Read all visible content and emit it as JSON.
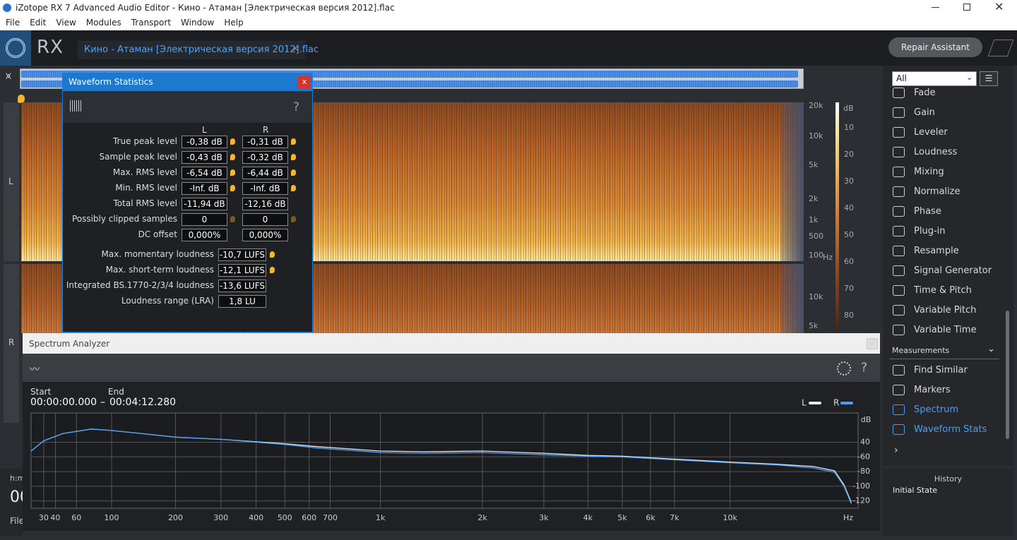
{
  "window": {
    "title": "iZotope RX 7 Advanced Audio Editor - Кино - Атаман [Электрическая версия 2012].flac"
  },
  "menu": [
    "File",
    "Edit",
    "View",
    "Modules",
    "Transport",
    "Window",
    "Help"
  ],
  "header": {
    "logo": "RX",
    "tab": "Кино - Атаман [Электрическая версия 2012].flac",
    "repair_button": "Repair Assistant"
  },
  "editor": {
    "channels": [
      "L",
      "R"
    ],
    "freq_labels_top": [
      "20k",
      "10k",
      "5k",
      "2k",
      "1k",
      "500",
      "100"
    ],
    "freq_unit": "Hz",
    "freq_labels_bottom": [
      "10k",
      "5k"
    ],
    "db_unit": "dB",
    "db_labels": [
      "10",
      "20",
      "30",
      "40",
      "50",
      "60",
      "70",
      "80"
    ]
  },
  "waveform_statistics": {
    "title": "Waveform Statistics",
    "close": "x",
    "help": "?",
    "columns": [
      "L",
      "R"
    ],
    "rows": [
      {
        "label": "True peak level",
        "l": "-0,38 dB",
        "r": "-0,31 dB"
      },
      {
        "label": "Sample peak level",
        "l": "-0,43 dB",
        "r": "-0,32 dB"
      },
      {
        "label": "Max. RMS level",
        "l": "-6,54 dB",
        "r": "-6,44 dB"
      },
      {
        "label": "Min. RMS level",
        "l": "-Inf. dB",
        "r": "-Inf. dB"
      },
      {
        "label": "Total RMS level",
        "l": "-11,94 dB",
        "r": "-12,16 dB"
      },
      {
        "label": "Possibly clipped samples",
        "l": "0",
        "r": "0"
      },
      {
        "label": "DC offset",
        "l": "0,000%",
        "r": "0,000%"
      }
    ],
    "loudness": [
      {
        "label": "Max. momentary loudness",
        "value": "-10,7 LUFS"
      },
      {
        "label": "Max. short-term loudness",
        "value": "-12,1 LUFS"
      },
      {
        "label": "Integrated BS.1770-2/3/4 loudness",
        "value": "-13,6 LUFS"
      },
      {
        "label": "Loudness range (LRA)",
        "value": "1,8 LU"
      }
    ]
  },
  "spectrum_analyzer": {
    "title": "Spectrum Analyzer",
    "help": "?",
    "start_label": "Start",
    "end_label": "End",
    "start": "00:00:00.000",
    "separator": "–",
    "end": "00:04:12.280"
  },
  "chart_data": {
    "type": "line",
    "x_label": "Hz",
    "y_label": "dB",
    "x": [
      20,
      30,
      47,
      76,
      100,
      141,
      200,
      300,
      500,
      640,
      1000,
      1350,
      2000,
      3000,
      4000,
      5000,
      7000,
      10000,
      13500,
      17000,
      19500,
      20700,
      21700
    ],
    "series": [
      {
        "name": "L",
        "color": "#e8e8e8",
        "values": [
          -52,
          -38,
          -28,
          -22,
          -24,
          -28,
          -33,
          -36,
          -42,
          -46,
          -52,
          -53,
          -52,
          -55,
          -58,
          -59,
          -63,
          -67,
          -70,
          -73,
          -79,
          -98,
          -122
        ]
      },
      {
        "name": "R",
        "color": "#4a9ff5",
        "values": [
          -52,
          -38,
          -28,
          -22,
          -24,
          -28,
          -33,
          -36,
          -43,
          -48,
          -54,
          -55,
          -54,
          -57,
          -59,
          -60,
          -64,
          -68,
          -71,
          -75,
          -81,
          -100,
          -124
        ]
      }
    ],
    "xlim": [
      20,
      22050
    ],
    "ylim": [
      -130,
      0
    ],
    "xticks": [
      30,
      40,
      60,
      100,
      200,
      300,
      400,
      500,
      600,
      700,
      {
        "value": 1000,
        "label": "1k"
      },
      {
        "value": 2000,
        "label": "2k"
      },
      {
        "value": 3000,
        "label": "3k"
      },
      {
        "value": 4000,
        "label": "4k"
      },
      {
        "value": 5000,
        "label": "5k"
      },
      {
        "value": 6000,
        "label": "6k"
      },
      {
        "value": 7000,
        "label": "7k"
      },
      {
        "value": 10000,
        "label": "10k"
      }
    ],
    "yticks": [
      {
        "value": -40,
        "label": "40"
      },
      -60,
      -80,
      -100,
      -120
    ],
    "grid": true
  },
  "modules": {
    "filter": "All",
    "items": [
      "Fade",
      "Gain",
      "Leveler",
      "Loudness",
      "Mixing",
      "Normalize",
      "Phase",
      "Plug-in",
      "Resample",
      "Signal Generator",
      "Time & Pitch",
      "Variable Pitch",
      "Variable Time"
    ],
    "section": "Measurements",
    "measurement_items": [
      "Find Similar",
      "Markers",
      "Spectrum",
      "Waveform Stats"
    ]
  },
  "history": {
    "title": "History",
    "items": [
      "Initial State"
    ]
  },
  "transport": {
    "time_label": "h:m",
    "time": "00",
    "file_label": "File"
  }
}
